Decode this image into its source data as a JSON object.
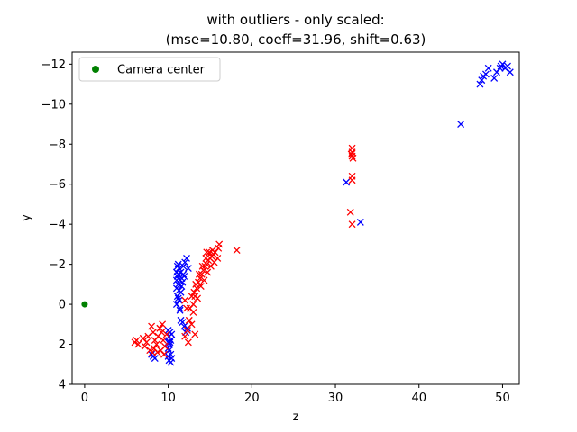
{
  "chart_data": {
    "type": "scatter",
    "title_lines": [
      "with outliers - only scaled:",
      "(mse=10.80, coeff=31.96, shift=0.63)"
    ],
    "xlabel": "z",
    "ylabel": "y",
    "xlim": [
      -1.5,
      52
    ],
    "ylim": [
      4,
      -12.6
    ],
    "y_inverted": true,
    "grid": false,
    "legend_position": "top-left",
    "x_ticks": [
      0,
      10,
      20,
      30,
      40,
      50
    ],
    "x_tick_labels": [
      "0",
      "10",
      "20",
      "30",
      "40",
      "50"
    ],
    "y_ticks": [
      -12,
      -10,
      -8,
      -6,
      -4,
      -2,
      0,
      2,
      4
    ],
    "y_tick_labels": [
      "−12",
      "−10",
      "−8",
      "−6",
      "−4",
      "−2",
      "0",
      "2",
      "4"
    ],
    "series": [
      {
        "name": "Camera center",
        "marker": "circle",
        "color": "#008000",
        "points": [
          [
            0,
            0
          ]
        ]
      },
      {
        "marker": "x",
        "color": "#0000ff",
        "points": [
          [
            45.0,
            -9.0
          ],
          [
            31.3,
            -6.1
          ],
          [
            33.0,
            -4.1
          ],
          [
            47.3,
            -11.0
          ],
          [
            47.5,
            -11.2
          ],
          [
            47.7,
            -11.4
          ],
          [
            48.0,
            -11.5
          ],
          [
            48.3,
            -11.8
          ],
          [
            49.0,
            -11.3
          ],
          [
            49.3,
            -11.6
          ],
          [
            49.8,
            -11.9
          ],
          [
            50.0,
            -12.0
          ],
          [
            50.3,
            -11.8
          ],
          [
            50.6,
            -11.9
          ],
          [
            50.9,
            -11.6
          ],
          [
            49.7,
            -11.8
          ],
          [
            11.0,
            -1.6
          ],
          [
            11.1,
            -1.4
          ],
          [
            11.3,
            -1.8
          ],
          [
            11.2,
            -1.0
          ],
          [
            11.4,
            -1.2
          ],
          [
            11.0,
            -0.8
          ],
          [
            11.5,
            -0.6
          ],
          [
            11.1,
            -0.4
          ],
          [
            11.3,
            -0.2
          ],
          [
            11.0,
            0.0
          ],
          [
            11.4,
            0.2
          ],
          [
            11.2,
            -1.5
          ],
          [
            11.6,
            -1.3
          ],
          [
            11.1,
            -1.9
          ],
          [
            11.7,
            -1.1
          ],
          [
            11.3,
            -0.7
          ],
          [
            11.5,
            -1.6
          ],
          [
            11.2,
            -0.3
          ],
          [
            11.6,
            -0.9
          ],
          [
            11.4,
            0.3
          ],
          [
            11.0,
            -1.2
          ],
          [
            11.8,
            -1.5
          ],
          [
            11.2,
            -2.0
          ],
          [
            12.0,
            -2.1
          ],
          [
            12.2,
            -2.3
          ],
          [
            11.8,
            -1.9
          ],
          [
            12.4,
            -1.8
          ],
          [
            11.9,
            -1.4
          ],
          [
            11.5,
            0.8
          ],
          [
            11.9,
            1.1
          ],
          [
            12.1,
            1.4
          ],
          [
            11.7,
            0.9
          ],
          [
            12.3,
            1.2
          ],
          [
            10.0,
            1.3
          ],
          [
            10.1,
            1.6
          ],
          [
            10.2,
            1.9
          ],
          [
            10.0,
            2.2
          ],
          [
            10.3,
            2.5
          ],
          [
            10.1,
            2.8
          ],
          [
            10.4,
            1.5
          ],
          [
            10.2,
            2.0
          ],
          [
            10.0,
            2.6
          ],
          [
            10.3,
            1.8
          ],
          [
            10.1,
            2.3
          ],
          [
            10.4,
            2.7
          ],
          [
            10.2,
            1.4
          ],
          [
            10.0,
            1.9
          ],
          [
            10.3,
            2.9
          ],
          [
            8.2,
            2.6
          ],
          [
            8.4,
            2.7
          ],
          [
            8.0,
            2.5
          ]
        ]
      },
      {
        "marker": "x",
        "color": "#ff0000",
        "points": [
          [
            32.0,
            -7.8
          ],
          [
            32.0,
            -7.6
          ],
          [
            32.0,
            -7.4
          ],
          [
            32.1,
            -7.3
          ],
          [
            31.9,
            -7.5
          ],
          [
            32.0,
            -6.4
          ],
          [
            32.0,
            -6.2
          ],
          [
            31.8,
            -4.6
          ],
          [
            32.0,
            -4.0
          ],
          [
            18.2,
            -2.7
          ],
          [
            16.1,
            -3.0
          ],
          [
            16.0,
            -2.8
          ],
          [
            13.0,
            0.0
          ],
          [
            13.2,
            -0.4
          ],
          [
            13.4,
            -0.8
          ],
          [
            13.6,
            -1.1
          ],
          [
            13.8,
            -1.3
          ],
          [
            14.0,
            -1.5
          ],
          [
            14.2,
            -1.7
          ],
          [
            14.4,
            -1.9
          ],
          [
            14.6,
            -2.0
          ],
          [
            14.8,
            -2.2
          ],
          [
            15.0,
            -2.3
          ],
          [
            15.2,
            -2.4
          ],
          [
            15.4,
            -2.5
          ],
          [
            15.6,
            -2.6
          ],
          [
            13.1,
            -0.6
          ],
          [
            13.5,
            -0.3
          ],
          [
            13.9,
            -0.9
          ],
          [
            14.3,
            -1.2
          ],
          [
            14.7,
            -1.6
          ],
          [
            15.1,
            -1.9
          ],
          [
            15.5,
            -2.1
          ],
          [
            15.9,
            -2.3
          ],
          [
            13.3,
            -1.0
          ],
          [
            13.7,
            -1.5
          ],
          [
            14.1,
            -1.9
          ],
          [
            14.5,
            -2.3
          ],
          [
            14.9,
            -2.6
          ],
          [
            15.3,
            -2.7
          ],
          [
            12.8,
            -0.4
          ],
          [
            12.6,
            0.2
          ],
          [
            13.0,
            0.4
          ],
          [
            12.2,
            0.2
          ],
          [
            12.0,
            -0.2
          ],
          [
            12.5,
            0.8
          ],
          [
            12.8,
            1.0
          ],
          [
            12.3,
            1.3
          ],
          [
            12.0,
            1.6
          ],
          [
            12.4,
            1.9
          ],
          [
            13.2,
            1.5
          ],
          [
            14.6,
            -2.6
          ],
          [
            8.0,
            1.1
          ],
          [
            8.2,
            1.4
          ],
          [
            8.4,
            1.8
          ],
          [
            8.6,
            2.0
          ],
          [
            8.8,
            1.6
          ],
          [
            9.0,
            1.2
          ],
          [
            9.2,
            1.4
          ],
          [
            9.4,
            1.8
          ],
          [
            9.6,
            2.1
          ],
          [
            9.8,
            1.5
          ],
          [
            8.3,
            2.2
          ],
          [
            8.7,
            2.4
          ],
          [
            9.1,
            2.3
          ],
          [
            9.5,
            2.5
          ],
          [
            7.6,
            1.6
          ],
          [
            7.4,
            1.9
          ],
          [
            7.2,
            2.1
          ],
          [
            7.0,
            1.7
          ],
          [
            7.8,
            2.3
          ],
          [
            8.1,
            2.4
          ],
          [
            9.3,
            1.0
          ],
          [
            6.0,
            1.9
          ],
          [
            6.2,
            1.8
          ],
          [
            6.4,
            2.0
          ]
        ]
      }
    ]
  }
}
